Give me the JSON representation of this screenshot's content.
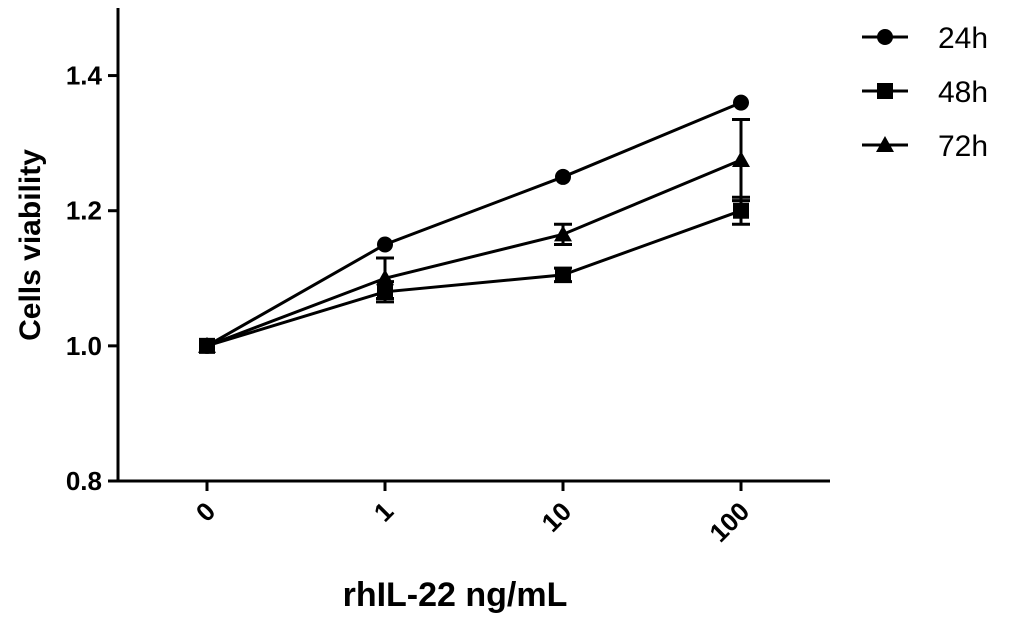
{
  "chart_data": {
    "type": "line",
    "xlabel": "rhIL-22 ng/mL",
    "ylabel": "Cells viability",
    "categories": [
      "0",
      "1",
      "10",
      "100"
    ],
    "series": [
      {
        "name": "24h",
        "marker": "circle",
        "color": "#000000",
        "values": [
          1.0,
          1.15,
          1.25,
          1.36
        ],
        "errors": [
          null,
          null,
          null,
          null
        ]
      },
      {
        "name": "48h",
        "marker": "square",
        "color": "#000000",
        "values": [
          1.0,
          1.08,
          1.105,
          1.2
        ],
        "errors": [
          null,
          0.015,
          0.01,
          0.02
        ]
      },
      {
        "name": "72h",
        "marker": "triangle",
        "color": "#000000",
        "values": [
          1.0,
          1.1,
          1.165,
          1.275
        ],
        "errors": [
          null,
          0.03,
          0.015,
          0.06
        ]
      }
    ],
    "ylim": [
      0.8,
      1.5
    ],
    "yticks": [
      0.8,
      {
        "value": 1,
        "label": "1.0"
      },
      1.2,
      1.4
    ],
    "grid": false,
    "legend": "upper right"
  }
}
